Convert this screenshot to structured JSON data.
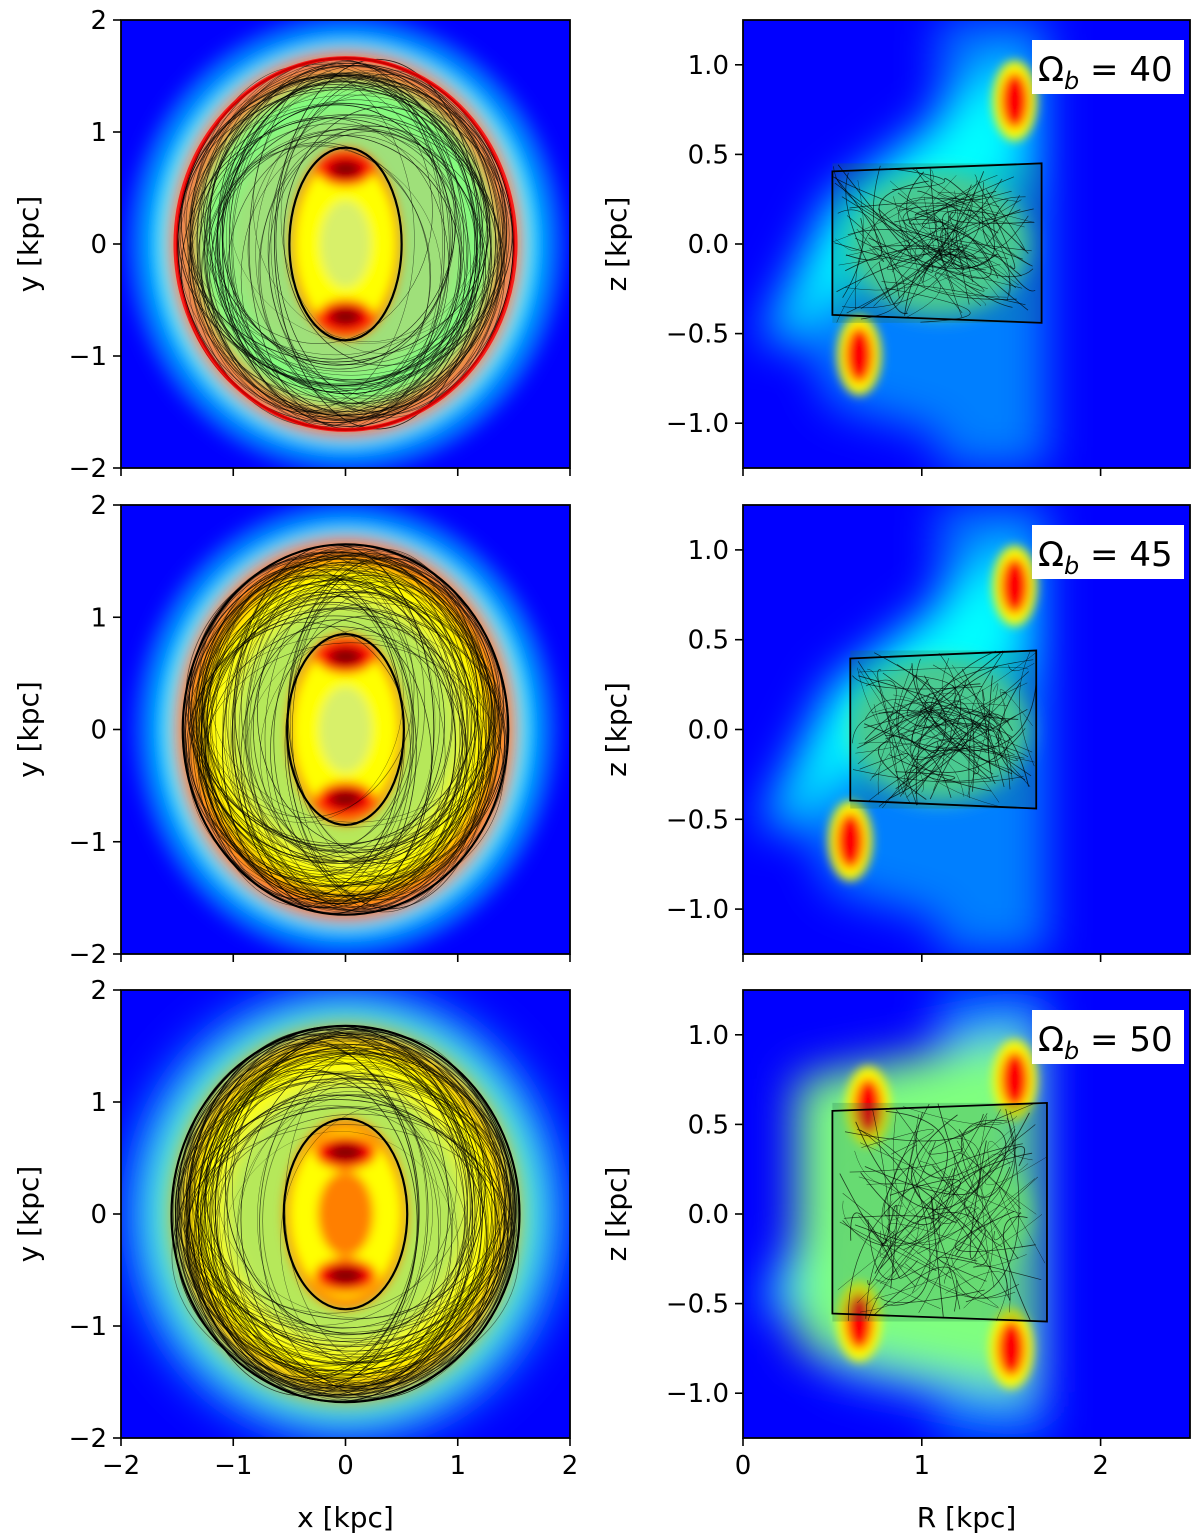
{
  "colors": {
    "colormap": [
      "#00007f",
      "#0000ff",
      "#007fff",
      "#00ffff",
      "#7fff7f",
      "#ffff00",
      "#ff7f00",
      "#ff0000",
      "#7f0000"
    ],
    "orbit": "#000000",
    "label_box": "#ffffff"
  },
  "chart_data": [
    {
      "type": "heatmap",
      "panel": "face-on",
      "row": 0,
      "omega_b": 40,
      "xlabel": "",
      "ylabel": "y [kpc]",
      "xlim": [
        -2,
        2
      ],
      "ylim": [
        -2,
        2
      ],
      "xticks": [
        "−2",
        "−1",
        "0",
        "1",
        "2"
      ],
      "yticks": [
        "−2",
        "−1",
        "0",
        "1",
        "2"
      ],
      "xtick_labels_shown": false,
      "ring": {
        "center": [
          0.0,
          -0.41
        ],
        "rx": 1.52,
        "ry": 1.25,
        "outer_ry_top": 1.62,
        "outer_ry_bottom": -1.66
      },
      "orbit_outer": {
        "rx": 1.5,
        "ry": 1.66
      },
      "orbit_inner": {
        "rx": 0.5,
        "ry": 0.86
      },
      "inner_peaks": [
        {
          "x": 0.0,
          "y": 0.67
        },
        {
          "x": 0.0,
          "y": -0.65
        }
      ]
    },
    {
      "type": "heatmap",
      "panel": "side-on",
      "row": 0,
      "omega_b": 40,
      "xlabel": "",
      "ylabel": "z [kpc]",
      "xlim": [
        0,
        2.5
      ],
      "ylim": [
        -1.25,
        1.25
      ],
      "xticks": [
        "0",
        "1",
        "2"
      ],
      "yticks": [
        "−1.0",
        "−0.5",
        "0.0",
        "0.5",
        "1.0"
      ],
      "xtick_labels_shown": false,
      "annotation": "Ω_b = 40",
      "orbit_box": {
        "R": [
          0.5,
          1.67
        ],
        "z": [
          -0.44,
          0.45
        ]
      },
      "peaks": [
        {
          "R": 1.52,
          "z": 0.8
        },
        {
          "R": 0.65,
          "z": -0.62
        }
      ]
    },
    {
      "type": "heatmap",
      "panel": "face-on",
      "row": 1,
      "omega_b": 45,
      "xlabel": "",
      "ylabel": "y [kpc]",
      "xlim": [
        -2,
        2
      ],
      "ylim": [
        -2,
        2
      ],
      "xticks": [
        "−2",
        "−1",
        "0",
        "1",
        "2"
      ],
      "yticks": [
        "−2",
        "−1",
        "0",
        "1",
        "2"
      ],
      "xtick_labels_shown": false,
      "orbit_outer": {
        "rx": 1.45,
        "ry": 1.65
      },
      "orbit_inner": {
        "rx": 0.52,
        "ry": 0.85
      },
      "inner_peaks": [
        {
          "x": 0.0,
          "y": 0.65
        },
        {
          "x": 0.0,
          "y": -0.62
        }
      ]
    },
    {
      "type": "heatmap",
      "panel": "side-on",
      "row": 1,
      "omega_b": 45,
      "xlabel": "",
      "ylabel": "z [kpc]",
      "xlim": [
        0,
        2.5
      ],
      "ylim": [
        -1.25,
        1.25
      ],
      "xticks": [
        "0",
        "1",
        "2"
      ],
      "yticks": [
        "−1.0",
        "−0.5",
        "0.0",
        "0.5",
        "1.0"
      ],
      "xtick_labels_shown": false,
      "annotation": "Ω_b = 45",
      "orbit_box": {
        "R": [
          0.6,
          1.64
        ],
        "z": [
          -0.44,
          0.44
        ]
      },
      "peaks": [
        {
          "R": 1.52,
          "z": 0.8
        },
        {
          "R": 0.6,
          "z": -0.62
        }
      ]
    },
    {
      "type": "heatmap",
      "panel": "face-on",
      "row": 2,
      "omega_b": 50,
      "xlabel": "x [kpc]",
      "ylabel": "y [kpc]",
      "xlim": [
        -2,
        2
      ],
      "ylim": [
        -2,
        2
      ],
      "xticks": [
        "−2",
        "−1",
        "0",
        "1",
        "2"
      ],
      "yticks": [
        "−2",
        "−1",
        "0",
        "1",
        "2"
      ],
      "xtick_labels_shown": true,
      "orbit_outer": {
        "rx": 1.55,
        "ry": 1.68
      },
      "orbit_inner": {
        "rx": 0.55,
        "ry": 0.85
      },
      "inner_peaks": [
        {
          "x": 0.0,
          "y": 0.55
        },
        {
          "x": 0.0,
          "y": -0.55
        }
      ]
    },
    {
      "type": "heatmap",
      "panel": "side-on",
      "row": 2,
      "omega_b": 50,
      "xlabel": "R [kpc]",
      "ylabel": "z [kpc]",
      "xlim": [
        0,
        2.5
      ],
      "ylim": [
        -1.25,
        1.25
      ],
      "xticks": [
        "0",
        "1",
        "2"
      ],
      "yticks": [
        "−1.0",
        "−0.5",
        "0.0",
        "0.5",
        "1.0"
      ],
      "xtick_labels_shown": true,
      "annotation": "Ω_b = 50",
      "orbit_box": {
        "R": [
          0.5,
          1.7
        ],
        "z": [
          -0.6,
          0.62
        ]
      },
      "peaks": [
        {
          "R": 1.52,
          "z": 0.75
        },
        {
          "R": 1.5,
          "z": -0.75
        },
        {
          "R": 0.7,
          "z": 0.6
        },
        {
          "R": 0.65,
          "z": -0.6
        }
      ]
    }
  ]
}
